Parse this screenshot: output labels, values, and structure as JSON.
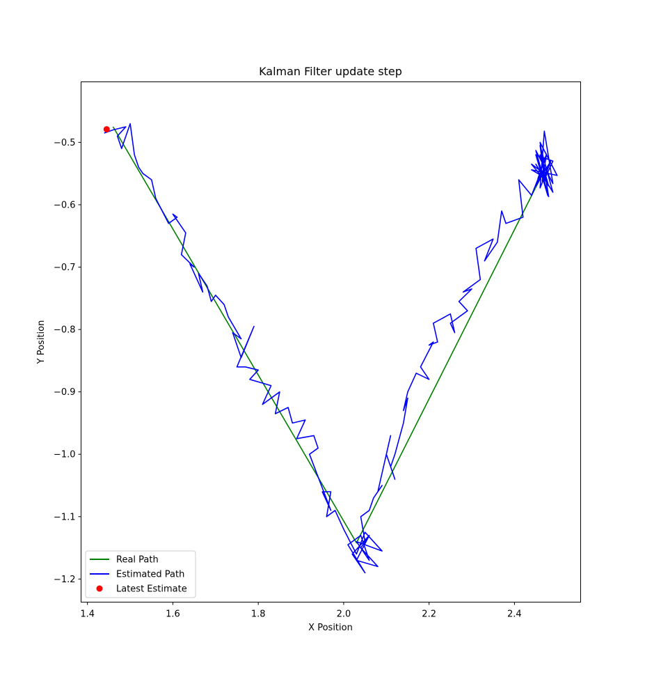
{
  "chart_data": {
    "type": "line",
    "title": "Kalman Filter update step",
    "xlabel": "X Position",
    "ylabel": "Y Position",
    "xlim": [
      1.385,
      2.555
    ],
    "ylim": [
      -1.237,
      -0.403
    ],
    "x_ticks": [
      1.4,
      1.6,
      1.8,
      2.0,
      2.2,
      2.4
    ],
    "x_tick_labels": [
      "1.4",
      "1.6",
      "1.8",
      "2.0",
      "2.2",
      "2.4"
    ],
    "y_ticks": [
      -0.5,
      -0.6,
      -0.7,
      -0.8,
      -0.9,
      -1.0,
      -1.1,
      -1.2
    ],
    "y_tick_labels": [
      "−0.5",
      "−0.6",
      "−0.7",
      "−0.8",
      "−0.9",
      "−1.0",
      "−1.1",
      "−1.2"
    ],
    "grid": false,
    "legend_position": "bottom-left",
    "series": [
      {
        "name": "Real Path",
        "type": "line",
        "color": "#008000",
        "x": [
          1.46,
          2.03,
          2.47
        ],
        "y": [
          -0.475,
          -1.142,
          -0.545
        ]
      },
      {
        "name": "Estimated Path",
        "type": "line",
        "color": "#0000ff",
        "x": [
          2.47,
          2.46,
          2.48,
          2.45,
          2.49,
          2.46,
          2.47,
          2.44,
          2.5,
          2.46,
          2.48,
          2.45,
          2.49,
          2.47,
          2.46,
          2.48,
          2.455,
          2.475,
          2.465,
          2.485,
          2.45,
          2.47,
          2.48,
          2.46,
          2.44,
          2.47,
          2.49,
          2.45,
          2.478,
          2.462,
          2.44,
          2.41,
          2.42,
          2.38,
          2.37,
          2.36,
          2.33,
          2.35,
          2.31,
          2.32,
          2.28,
          2.3,
          2.27,
          2.29,
          2.25,
          2.26,
          2.25,
          2.21,
          2.22,
          2.2,
          2.21,
          2.18,
          2.2,
          2.17,
          2.15,
          2.14,
          2.15,
          2.14,
          2.12,
          2.11,
          2.12,
          2.1,
          2.11,
          2.08,
          2.09,
          2.07,
          2.06,
          2.04,
          2.05,
          2.06,
          2.03,
          2.08,
          2.04,
          2.06,
          2.02,
          2.05,
          2.01,
          2.04,
          2.06,
          2.03,
          2.09,
          2.05,
          2.03,
          2.0,
          1.98,
          1.96,
          1.97,
          1.95,
          1.97,
          1.92,
          1.94,
          1.93,
          1.89,
          1.91,
          1.88,
          1.87,
          1.84,
          1.85,
          1.81,
          1.83,
          1.78,
          1.8,
          1.77,
          1.75,
          1.79,
          1.76,
          1.74,
          1.76,
          1.73,
          1.72,
          1.7,
          1.69,
          1.68,
          1.66,
          1.67,
          1.64,
          1.65,
          1.62,
          1.63,
          1.6,
          1.61,
          1.59,
          1.56,
          1.55,
          1.53,
          1.52,
          1.51,
          1.5,
          1.48,
          1.47,
          1.49,
          1.46,
          1.44,
          1.45
        ],
        "y": [
          -0.547,
          -0.52,
          -0.57,
          -0.535,
          -0.58,
          -0.505,
          -0.556,
          -0.544,
          -0.553,
          -0.5,
          -0.587,
          -0.513,
          -0.566,
          -0.482,
          -0.573,
          -0.539,
          -0.558,
          -0.519,
          -0.562,
          -0.53,
          -0.57,
          -0.54,
          -0.55,
          -0.545,
          -0.535,
          -0.56,
          -0.53,
          -0.52,
          -0.585,
          -0.547,
          -0.585,
          -0.56,
          -0.62,
          -0.63,
          -0.61,
          -0.66,
          -0.69,
          -0.655,
          -0.67,
          -0.72,
          -0.74,
          -0.735,
          -0.755,
          -0.77,
          -0.79,
          -0.805,
          -0.775,
          -0.79,
          -0.82,
          -0.825,
          -0.82,
          -0.86,
          -0.88,
          -0.87,
          -0.9,
          -0.93,
          -0.91,
          -0.95,
          -1.0,
          -1.02,
          -1.04,
          -1.0,
          -0.97,
          -1.06,
          -1.05,
          -1.07,
          -1.09,
          -1.1,
          -1.14,
          -1.13,
          -1.17,
          -1.18,
          -1.15,
          -1.13,
          -1.16,
          -1.19,
          -1.145,
          -1.13,
          -1.17,
          -1.14,
          -1.155,
          -1.125,
          -1.16,
          -1.12,
          -1.09,
          -1.1,
          -1.06,
          -1.06,
          -1.09,
          -1.0,
          -0.99,
          -0.97,
          -0.975,
          -0.945,
          -0.95,
          -0.925,
          -0.935,
          -0.9,
          -0.92,
          -0.89,
          -0.88,
          -0.865,
          -0.86,
          -0.86,
          -0.795,
          -0.845,
          -0.805,
          -0.815,
          -0.78,
          -0.76,
          -0.745,
          -0.755,
          -0.73,
          -0.71,
          -0.74,
          -0.695,
          -0.7,
          -0.68,
          -0.645,
          -0.615,
          -0.62,
          -0.63,
          -0.59,
          -0.56,
          -0.55,
          -0.54,
          -0.52,
          -0.47,
          -0.51,
          -0.49,
          -0.475,
          -0.48,
          -0.485,
          -0.48
        ]
      },
      {
        "name": "Latest Estimate",
        "type": "scatter",
        "color": "#ff0000",
        "x": [
          1.445
        ],
        "y": [
          -0.479
        ]
      }
    ]
  }
}
